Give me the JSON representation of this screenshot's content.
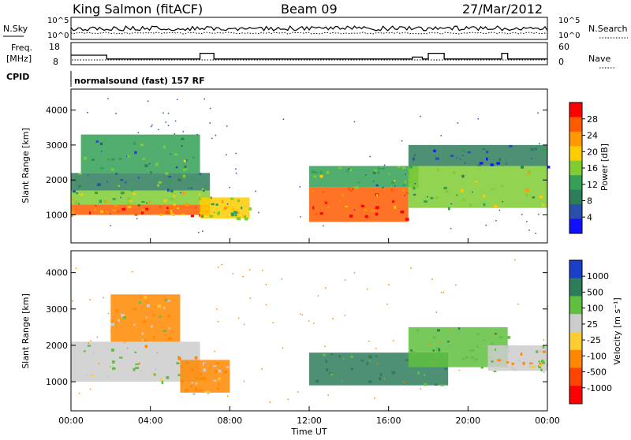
{
  "header": {
    "station": "King Salmon (fitACF)",
    "beam": "Beam 09",
    "date": "27/Mar/2012"
  },
  "strip_labels": {
    "nsky": "N.Sky",
    "nsky_ticks": [
      "10^5",
      "10^0"
    ],
    "nsearch": "N.Search",
    "nsearch_ticks": [
      "10^5",
      "10^0"
    ],
    "freq_line1": "Freq.",
    "freq_line2": "[MHz]",
    "freq_ticks": [
      "18",
      "8"
    ],
    "nave": "Nave",
    "nave_ticks": [
      "60",
      "0"
    ],
    "cpid": "CPID",
    "cpid_value": "normalsound (fast) 157 RF"
  },
  "axes": {
    "ylabel": "Slant Range [km]",
    "yticks": [
      "4000",
      "3000",
      "2000",
      "1000"
    ],
    "xlabel": "Time UT",
    "xticks": [
      "00:00",
      "04:00",
      "08:00",
      "12:00",
      "16:00",
      "20:00",
      "00:00"
    ]
  },
  "colorbars": {
    "power": {
      "label": "Power [dB]",
      "ticks": [
        "28",
        "24",
        "20",
        "16",
        "12",
        "8",
        "4"
      ],
      "colors": [
        "#ff0000",
        "#ff5a00",
        "#ff9900",
        "#ffcc00",
        "#7fcc33",
        "#33a055",
        "#2e7d5a",
        "#2a4faa",
        "#1010ff"
      ]
    },
    "velocity": {
      "label": "Velocity [m s⁻¹]",
      "ticks": [
        "1000",
        "500",
        "100",
        "25",
        "-25",
        "-100",
        "-500",
        "-1000"
      ],
      "colors": [
        "#1a3fc8",
        "#2e7d5a",
        "#5fbf3f",
        "#cccccc",
        "#ffcc33",
        "#ff8800",
        "#ff4400",
        "#ff0000"
      ]
    }
  },
  "chart_data": {
    "type": "heatmap",
    "title": "King Salmon (fitACF)",
    "xlabel": "Time UT",
    "ylabel": "Slant Range [km]",
    "xlim_hours": [
      0,
      24
    ],
    "ylim_km": [
      200,
      4600
    ],
    "series": [
      {
        "name": "Power [dB]",
        "regions": [
          {
            "t0": 0.0,
            "t1": 7.0,
            "r0": 1000,
            "r1": 1300,
            "value": 24
          },
          {
            "t0": 0.0,
            "t1": 7.0,
            "r0": 1300,
            "r1": 1700,
            "value": 14
          },
          {
            "t0": 0.0,
            "t1": 7.0,
            "r0": 1700,
            "r1": 2200,
            "value": 8
          },
          {
            "t0": 0.5,
            "t1": 6.5,
            "r0": 2200,
            "r1": 3300,
            "value": 10
          },
          {
            "t0": 6.5,
            "t1": 9.0,
            "r0": 900,
            "r1": 1500,
            "value": 16
          },
          {
            "t0": 12.0,
            "t1": 17.0,
            "r0": 800,
            "r1": 1800,
            "value": 26
          },
          {
            "t0": 12.0,
            "t1": 17.5,
            "r0": 1800,
            "r1": 2400,
            "value": 10
          },
          {
            "t0": 17.0,
            "t1": 24.0,
            "r0": 1200,
            "r1": 2400,
            "value": 14
          },
          {
            "t0": 17.0,
            "t1": 24.0,
            "r0": 2400,
            "r1": 3000,
            "value": 6
          }
        ]
      },
      {
        "name": "Velocity [m s⁻¹]",
        "regions": [
          {
            "t0": 0.0,
            "t1": 6.5,
            "r0": 1000,
            "r1": 2100,
            "value": 0
          },
          {
            "t0": 2.0,
            "t1": 5.5,
            "r0": 2100,
            "r1": 3400,
            "value": -60
          },
          {
            "t0": 5.5,
            "t1": 8.0,
            "r0": 700,
            "r1": 1600,
            "value": -100
          },
          {
            "t0": 12.0,
            "t1": 19.0,
            "r0": 900,
            "r1": 1800,
            "value": 300
          },
          {
            "t0": 17.0,
            "t1": 22.0,
            "r0": 1400,
            "r1": 2500,
            "value": 200
          },
          {
            "t0": 21.0,
            "t1": 24.0,
            "r0": 1300,
            "r1": 2000,
            "value": 0
          }
        ]
      }
    ],
    "freq_steps_mhz": [
      {
        "t0": 0.0,
        "t1": 1.8,
        "value": 13
      },
      {
        "t0": 1.8,
        "t1": 6.5,
        "value": 11
      },
      {
        "t0": 6.5,
        "t1": 7.2,
        "value": 14
      },
      {
        "t0": 7.2,
        "t1": 17.2,
        "value": 11
      },
      {
        "t0": 17.2,
        "t1": 17.7,
        "value": 12
      },
      {
        "t0": 17.7,
        "t1": 18.0,
        "value": 11
      },
      {
        "t0": 18.0,
        "t1": 18.8,
        "value": 14
      },
      {
        "t0": 18.8,
        "t1": 21.7,
        "value": 11
      },
      {
        "t0": 21.7,
        "t1": 22.0,
        "value": 14
      },
      {
        "t0": 22.0,
        "t1": 24.0,
        "value": 11
      }
    ]
  }
}
